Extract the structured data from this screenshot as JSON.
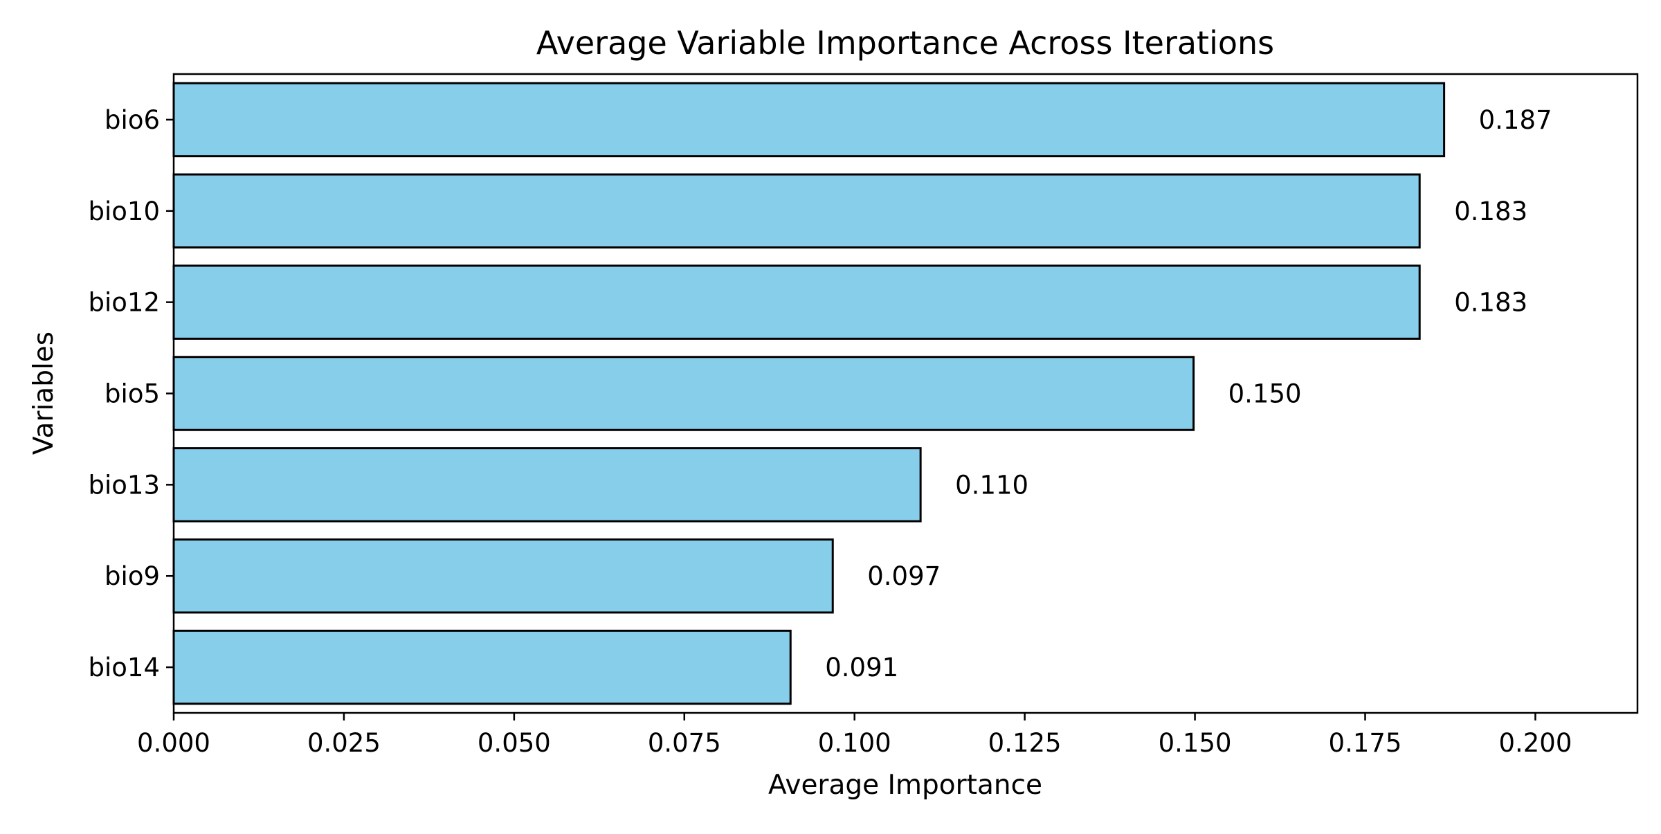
{
  "chart_data": {
    "type": "bar",
    "orientation": "horizontal",
    "title": "Average Variable Importance Across Iterations",
    "xlabel": "Average Importance",
    "ylabel": "Variables",
    "categories": [
      "bio6",
      "bio10",
      "bio12",
      "bio5",
      "bio13",
      "bio9",
      "bio14"
    ],
    "values": [
      0.1866,
      0.183,
      0.183,
      0.1498,
      0.1097,
      0.0968,
      0.0906
    ],
    "value_labels": [
      "0.187",
      "0.183",
      "0.183",
      "0.150",
      "0.110",
      "0.097",
      "0.091"
    ],
    "xlim": [
      0,
      0.215
    ],
    "xticks": [
      0.0,
      0.025,
      0.05,
      0.075,
      0.1,
      0.125,
      0.15,
      0.175,
      0.2
    ],
    "xtick_labels": [
      "0.000",
      "0.025",
      "0.050",
      "0.075",
      "0.100",
      "0.125",
      "0.150",
      "0.175",
      "0.200"
    ],
    "grid": false,
    "colors": {
      "bar_fill": "#87ceeb",
      "bar_edge": "#000000"
    }
  }
}
